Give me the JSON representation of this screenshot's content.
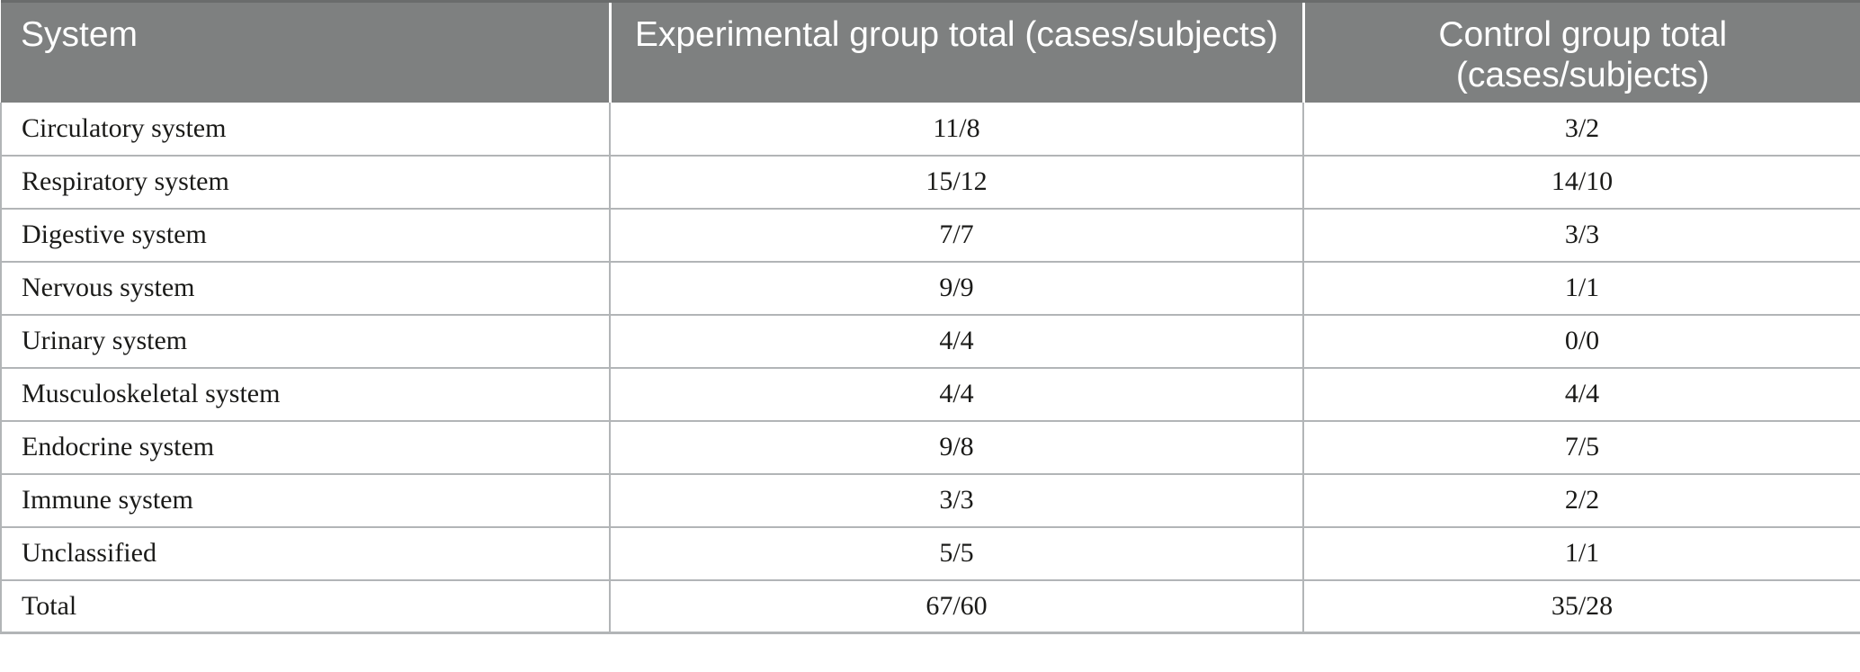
{
  "colors": {
    "page_bg": "#ffffff",
    "header_bg": "#7e8080",
    "header_text": "#ffffff",
    "header_top_border": "#6a6c6c",
    "header_separator": "#ffffff",
    "row_border": "#b2b5b7",
    "body_text": "#1a1a18"
  },
  "table": {
    "columns": [
      "System",
      "Experimental group total (cases/subjects)",
      "Control group total (cases/subjects)"
    ],
    "rows": [
      {
        "system": "Circulatory system",
        "experimental": "11/8",
        "control": "3/2"
      },
      {
        "system": "Respiratory system",
        "experimental": "15/12",
        "control": "14/10"
      },
      {
        "system": "Digestive system",
        "experimental": "7/7",
        "control": "3/3"
      },
      {
        "system": "Nervous system",
        "experimental": "9/9",
        "control": "1/1"
      },
      {
        "system": "Urinary system",
        "experimental": "4/4",
        "control": "0/0"
      },
      {
        "system": "Musculoskeletal system",
        "experimental": "4/4",
        "control": "4/4"
      },
      {
        "system": "Endocrine system",
        "experimental": "9/8",
        "control": "7/5"
      },
      {
        "system": "Immune system",
        "experimental": "3/3",
        "control": "2/2"
      },
      {
        "system": "Unclassified",
        "experimental": "5/5",
        "control": "1/1"
      },
      {
        "system": "Total",
        "experimental": "67/60",
        "control": "35/28"
      }
    ]
  },
  "chart_data": {
    "type": "table",
    "columns": [
      "System",
      "Experimental group total (cases/subjects)",
      "Control group total (cases/subjects)"
    ],
    "rows": [
      [
        "Circulatory system",
        "11/8",
        "3/2"
      ],
      [
        "Respiratory system",
        "15/12",
        "14/10"
      ],
      [
        "Digestive system",
        "7/7",
        "3/3"
      ],
      [
        "Nervous system",
        "9/9",
        "1/1"
      ],
      [
        "Urinary system",
        "4/4",
        "0/0"
      ],
      [
        "Musculoskeletal system",
        "4/4",
        "4/4"
      ],
      [
        "Endocrine system",
        "9/8",
        "7/5"
      ],
      [
        "Immune system",
        "3/3",
        "2/2"
      ],
      [
        "Unclassified",
        "5/5",
        "1/1"
      ],
      [
        "Total",
        "67/60",
        "35/28"
      ]
    ]
  }
}
